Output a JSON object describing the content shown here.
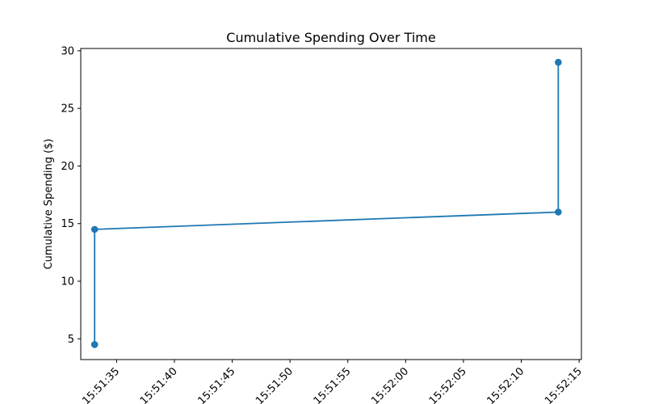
{
  "chart_data": {
    "type": "line",
    "title": "Cumulative Spending Over Time",
    "xlabel": "",
    "ylabel": "Cumulative Spending ($)",
    "x_type": "time",
    "x_ticks": [
      "15:51:35",
      "15:51:40",
      "15:51:45",
      "15:51:50",
      "15:51:55",
      "15:52:00",
      "15:52:05",
      "15:52:10",
      "15:52:15"
    ],
    "x_tick_label_rotation_deg": 45,
    "xlim": [
      "15:51:31.9",
      "15:52:15.2"
    ],
    "y_ticks": [
      5,
      10,
      15,
      20,
      25,
      30
    ],
    "ylim": [
      3.2,
      30.2
    ],
    "grid": false,
    "series": [
      {
        "color": "#1f77b4",
        "marker": "circle",
        "points": [
          {
            "x": "15:51:33.1",
            "y": 4.5
          },
          {
            "x": "15:51:33.1",
            "y": 14.5
          },
          {
            "x": "15:52:13.2",
            "y": 16.0
          },
          {
            "x": "15:52:13.2",
            "y": 29.0
          }
        ]
      }
    ]
  }
}
